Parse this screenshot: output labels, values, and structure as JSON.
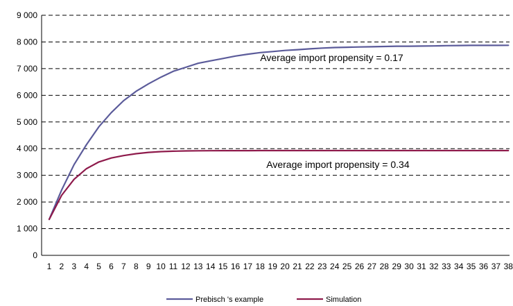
{
  "chart_data": {
    "type": "line",
    "title": "",
    "xlabel": "",
    "ylabel": "",
    "x": [
      1,
      2,
      3,
      4,
      5,
      6,
      7,
      8,
      9,
      10,
      11,
      12,
      13,
      14,
      15,
      16,
      17,
      18,
      19,
      20,
      21,
      22,
      23,
      24,
      25,
      26,
      27,
      28,
      29,
      30,
      31,
      32,
      33,
      34,
      35,
      36,
      37,
      38
    ],
    "x_tick_labels": [
      "1",
      "2",
      "3",
      "4",
      "5",
      "6",
      "7",
      "8",
      "9",
      "10",
      "11",
      "12",
      "13",
      "14",
      "15",
      "16",
      "17",
      "18",
      "19",
      "20",
      "21",
      "22",
      "23",
      "24",
      "25",
      "26",
      "27",
      "28",
      "29",
      "30",
      "31",
      "32",
      "33",
      "34",
      "35",
      "36",
      "37",
      "38"
    ],
    "ylim": [
      0,
      9000
    ],
    "y_ticks": [
      0,
      1000,
      2000,
      3000,
      4000,
      5000,
      6000,
      7000,
      8000,
      9000
    ],
    "y_tick_labels": [
      "0",
      "1 000",
      "2 000",
      "3 000",
      "4 000",
      "5 000",
      "6 000",
      "7 000",
      "8 000",
      "9 000"
    ],
    "grid": true,
    "legend_position": "bottom",
    "series": [
      {
        "name": "Prebisch 's example",
        "color": "#5b5b9a",
        "values": [
          1350,
          2450,
          3400,
          4150,
          4820,
          5350,
          5800,
          6150,
          6430,
          6680,
          6900,
          7050,
          7200,
          7290,
          7380,
          7470,
          7540,
          7600,
          7640,
          7680,
          7710,
          7740,
          7770,
          7790,
          7800,
          7810,
          7820,
          7830,
          7840,
          7840,
          7845,
          7850,
          7860,
          7865,
          7870,
          7870,
          7870,
          7875
        ]
      },
      {
        "name": "Simulation",
        "color": "#8e1a4b",
        "values": [
          1350,
          2250,
          2850,
          3250,
          3500,
          3650,
          3740,
          3810,
          3860,
          3890,
          3905,
          3915,
          3920,
          3922,
          3924,
          3925,
          3926,
          3927,
          3927,
          3928,
          3928,
          3928,
          3928,
          3928,
          3928,
          3928,
          3928,
          3928,
          3928,
          3928,
          3928,
          3928,
          3928,
          3928,
          3928,
          3928,
          3928,
          3928
        ]
      }
    ],
    "annotations": [
      {
        "text": "Average import propensity = 0.17",
        "x": 18,
        "y": 7280
      },
      {
        "text": "Average import propensity = 0.34",
        "x": 18.5,
        "y": 3280
      }
    ]
  }
}
